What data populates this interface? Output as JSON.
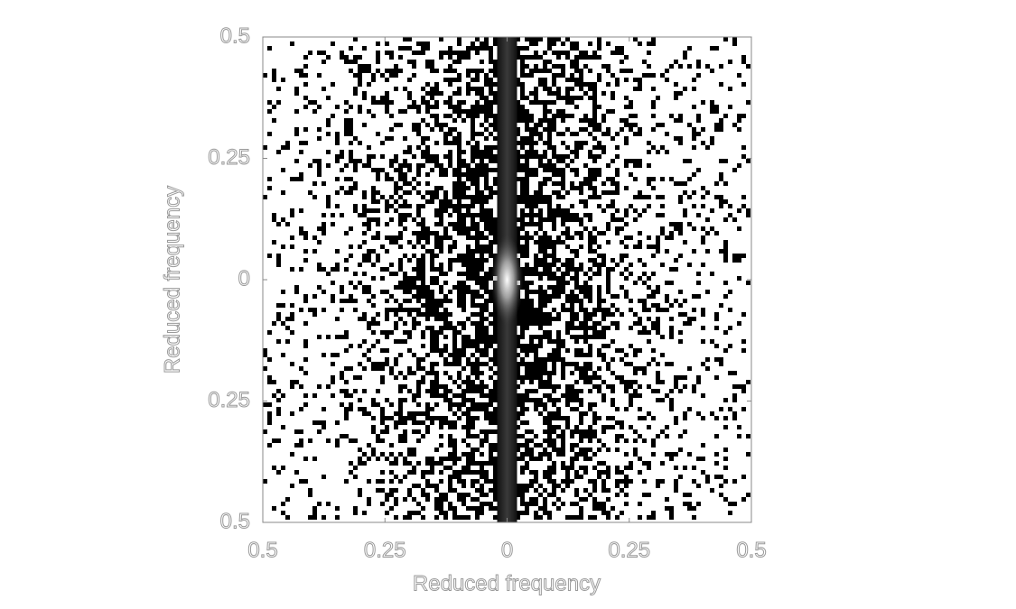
{
  "chart_data": {
    "type": "image",
    "xlabel": "Reduced frequency",
    "ylabel": "Reduced frequency",
    "xlim": [
      -0.5,
      0.5
    ],
    "ylim": [
      -0.5,
      0.5
    ],
    "xticks": [
      {
        "value": -0.5,
        "label": "0.5"
      },
      {
        "value": -0.25,
        "label": "0.25"
      },
      0,
      0.25,
      0.5
    ],
    "yticks": [
      {
        "value": -0.5,
        "label": "0.5"
      },
      {
        "value": -0.25,
        "label": "0.25"
      },
      0,
      0.25,
      0.5
    ]
  }
}
